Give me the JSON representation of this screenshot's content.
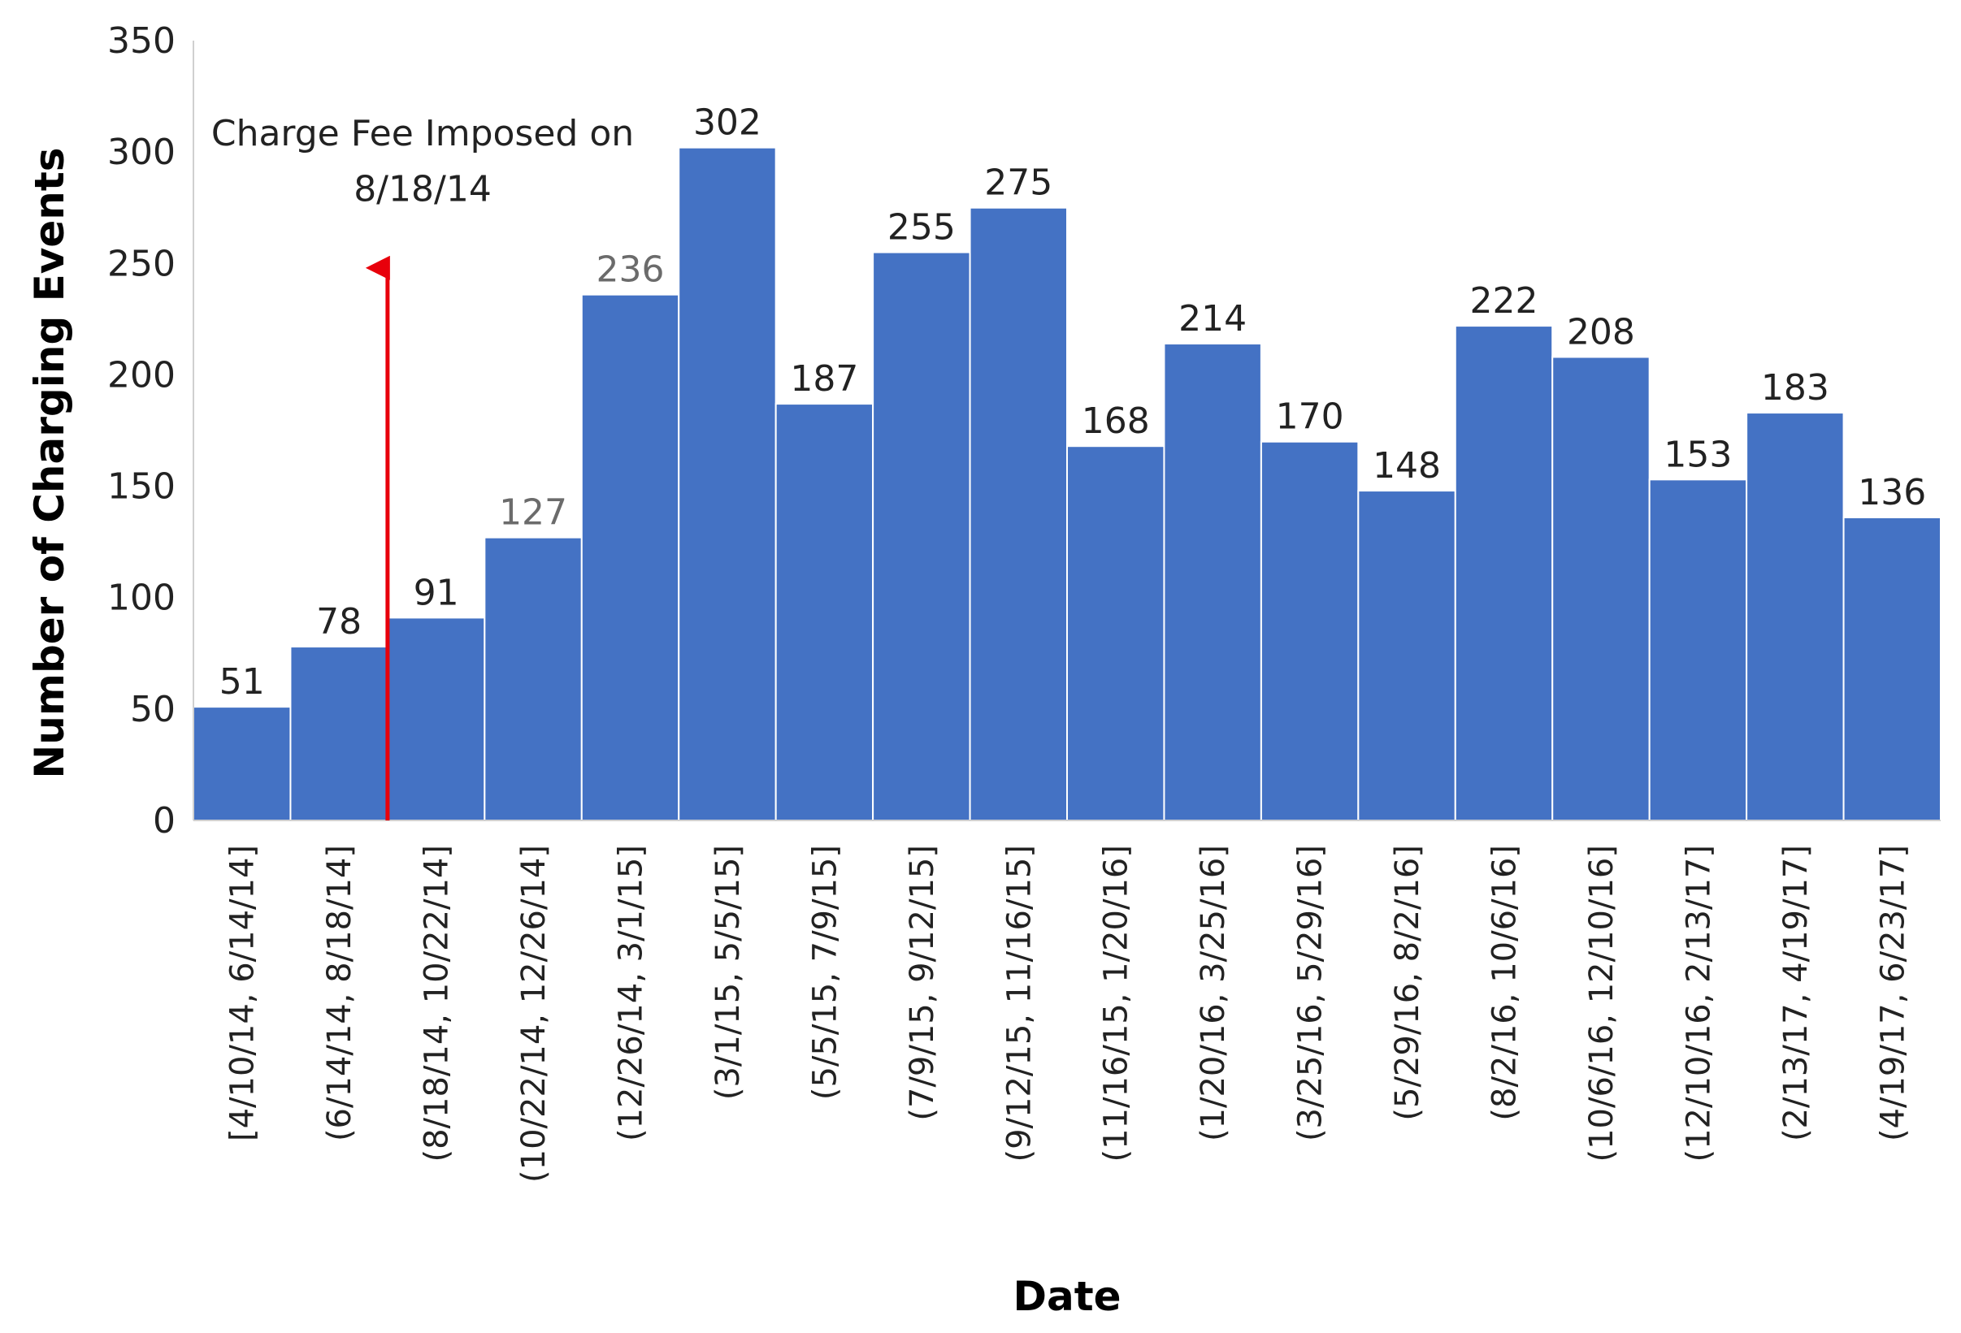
{
  "chart_data": {
    "type": "bar",
    "xlabel": "Date",
    "ylabel": "Number of Charging Events",
    "ylim": [
      0,
      350
    ],
    "yticks": [
      0,
      50,
      100,
      150,
      200,
      250,
      300,
      350
    ],
    "grid": false,
    "legend": "none",
    "bar_color": "#4472C4",
    "categories": [
      "[4/10/14, 6/14/14]",
      "(6/14/14, 8/18/14]",
      "(8/18/14, 10/22/14]",
      "(10/22/14, 12/26/14]",
      "(12/26/14, 3/1/15]",
      "(3/1/15, 5/5/15]",
      "(5/5/15, 7/9/15]",
      "(7/9/15, 9/12/15]",
      "(9/12/15, 11/16/15]",
      "(11/16/15, 1/20/16]",
      "(1/20/16, 3/25/16]",
      "(3/25/16, 5/29/16]",
      "(5/29/16, 8/2/16]",
      "(8/2/16, 10/6/16]",
      "(10/6/16, 12/10/16]",
      "(12/10/16, 2/13/17]",
      "(2/13/17, 4/19/17]",
      "(4/19/17, 6/23/17]"
    ],
    "values": [
      51,
      78,
      91,
      127,
      236,
      302,
      187,
      255,
      275,
      168,
      214,
      170,
      148,
      222,
      208,
      153,
      183,
      136
    ],
    "annotation": {
      "line1": "Charge Fee Imposed on",
      "line2": "8/18/14",
      "color": "#E8000B",
      "at_boundary_between": [
        "(6/14/14, 8/18/14]",
        "(8/18/14, 10/22/14]"
      ]
    }
  }
}
